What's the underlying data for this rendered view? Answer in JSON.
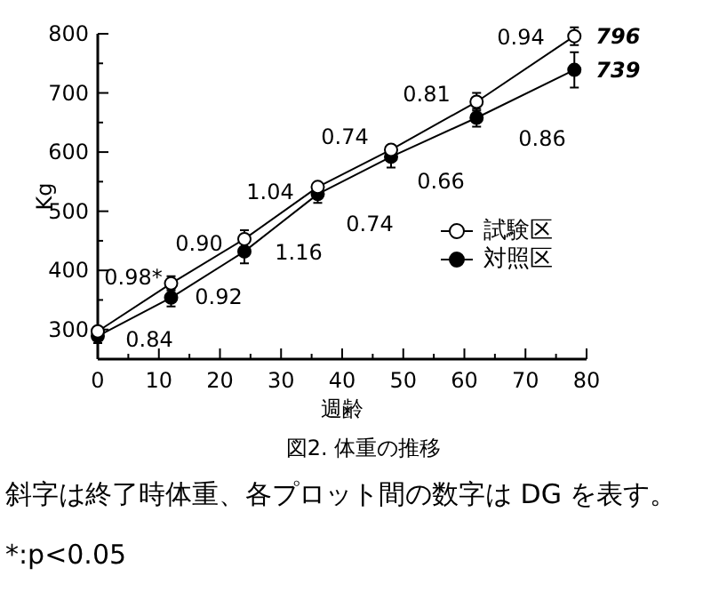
{
  "chart_data": {
    "type": "line",
    "title": "図2. 体重の推移",
    "xlabel": "週齢",
    "ylabel": "Kg",
    "x": [
      0,
      12,
      24,
      36,
      48,
      62,
      78
    ],
    "series": [
      {
        "name": "試験区",
        "color": "#ffffff",
        "values": [
          297,
          378,
          453,
          541,
          604,
          685,
          796
        ],
        "errors": [
          null,
          12,
          15,
          null,
          null,
          15,
          15
        ],
        "value_labels": [
          null,
          null,
          null,
          null,
          null,
          null,
          "796"
        ]
      },
      {
        "name": "対照区",
        "color": "#000000",
        "values": [
          289,
          354,
          432,
          529,
          592,
          658,
          739
        ],
        "errors": [
          12,
          15,
          20,
          15,
          18,
          15,
          30
        ],
        "value_labels": [
          null,
          null,
          null,
          null,
          null,
          null,
          "739"
        ]
      }
    ],
    "xlim": [
      0,
      80
    ],
    "xticks": [
      0,
      10,
      20,
      30,
      40,
      50,
      60,
      70,
      80
    ],
    "ylim": [
      250,
      800
    ],
    "yticks": [
      300,
      400,
      500,
      600,
      700,
      800
    ],
    "marker": "circle",
    "legend": "bottom right",
    "grid": false,
    "annotations": [
      "0.98*",
      "0.84",
      "0.90",
      "0.92",
      "1.04",
      "1.16",
      "0.74",
      "0.74",
      "0.81",
      "0.66",
      "0.94",
      "0.86",
      "斜字は終了時体重、各プロット間の数字は DG を表す。",
      "*:p<0.05"
    ]
  }
}
